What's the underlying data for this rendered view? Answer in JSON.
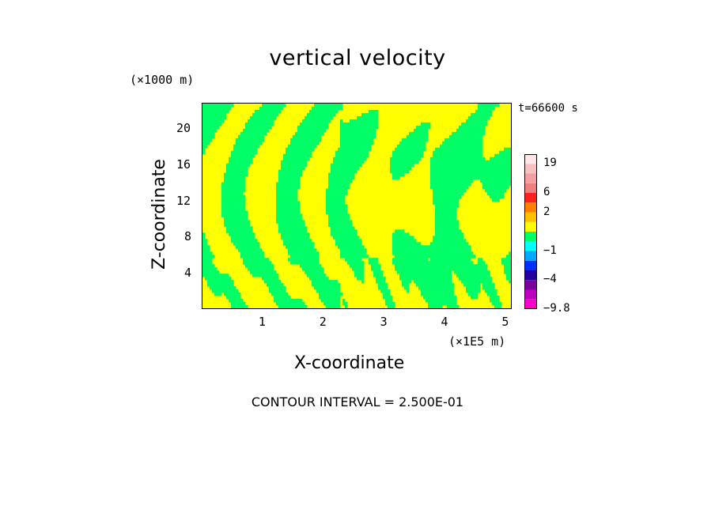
{
  "chart_data": {
    "type": "heatmap",
    "title": "vertical velocity",
    "xlabel": "X-coordinate",
    "ylabel": "Z-coordinate",
    "x_unit": "(×1E5 m)",
    "z_unit": "(×1000 m)",
    "time_label": "t=66600 s",
    "xlim": [
      0,
      5.1
    ],
    "zlim": [
      0,
      22.8
    ],
    "x_ticks": [
      "1",
      "2",
      "3",
      "4",
      "5"
    ],
    "x_tick_values": [
      1,
      2,
      3,
      4,
      5
    ],
    "z_ticks": [
      "4",
      "8",
      "12",
      "16",
      "20"
    ],
    "z_tick_values": [
      4,
      8,
      12,
      16,
      20
    ],
    "field_colors": {
      "positive": "#ffff00",
      "negative": "#00ff66"
    },
    "colorbar": {
      "min": -9.8,
      "max": 25,
      "labels": [
        "19",
        "6",
        "2",
        "−1",
        "−4",
        "−9.8"
      ],
      "label_values": [
        19,
        6,
        2,
        -1,
        -4,
        -9.8
      ],
      "colors": [
        "#ff00c8",
        "#c000c0",
        "#7a00a0",
        "#2000a0",
        "#0030ff",
        "#00a8ff",
        "#00ffff",
        "#00ff66",
        "#ffff00",
        "#ffc000",
        "#ff8000",
        "#ff2020",
        "#f08080",
        "#f4a0a0",
        "#f8c0c0",
        "#fde6e6"
      ],
      "bounds": [
        -9.8,
        -8,
        -6,
        -4,
        -3,
        -2,
        -1,
        0,
        0.5,
        1,
        2,
        4,
        6,
        10,
        15,
        19,
        25
      ]
    },
    "contour_interval": "CONTOUR INTERVAL = 2.500E-01"
  }
}
